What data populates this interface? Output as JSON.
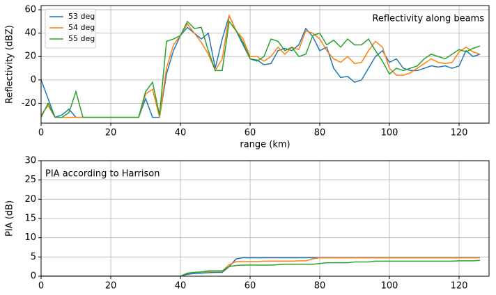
{
  "chart_data": [
    {
      "type": "line",
      "annotation": "Reflectivity along beams",
      "annotation_loc": "upper right",
      "xlabel": "range (km)",
      "ylabel": "Reflectivity (dBZ)",
      "xlim": [
        0,
        128.6
      ],
      "xticks": [
        0,
        20,
        40,
        60,
        80,
        100,
        120
      ],
      "ylim": [
        -37,
        63.6
      ],
      "yticks": [
        -20,
        0,
        20,
        40,
        60
      ],
      "grid": true,
      "legend": "upper left",
      "x": [
        0,
        2,
        4,
        6,
        8,
        10,
        12,
        14,
        16,
        18,
        20,
        22,
        24,
        26,
        28,
        30,
        32,
        34,
        36,
        38,
        40,
        42,
        44,
        46,
        48,
        50,
        52,
        54,
        56,
        58,
        60,
        62,
        64,
        66,
        68,
        70,
        72,
        74,
        76,
        78,
        80,
        82,
        84,
        86,
        88,
        90,
        92,
        94,
        96,
        98,
        100,
        102,
        104,
        106,
        108,
        110,
        112,
        114,
        116,
        118,
        120,
        122,
        124,
        126
      ],
      "series": [
        {
          "name": "53 deg",
          "color": "#1f77b4",
          "values": [
            0,
            -16,
            -32,
            -30,
            -25,
            -32,
            -32,
            -32,
            -32,
            -32,
            -32,
            -32,
            -32,
            -32,
            -32,
            -16,
            -32,
            -32,
            5,
            25,
            38,
            45,
            40,
            35,
            40,
            10,
            35,
            55,
            42,
            30,
            18,
            17,
            13,
            14,
            25,
            27,
            25,
            30,
            44,
            37,
            25,
            28,
            10,
            2,
            3,
            -2,
            0,
            10,
            20,
            25,
            15,
            18,
            10,
            8,
            8,
            10,
            12,
            11,
            12,
            10,
            12,
            25,
            20,
            22
          ]
        },
        {
          "name": "54 deg",
          "color": "#ff7f0e",
          "values": [
            -30,
            -22,
            -32,
            -32,
            -32,
            -32,
            -32,
            -32,
            -32,
            -32,
            -32,
            -32,
            -32,
            -32,
            -32,
            -12,
            -8,
            -32,
            10,
            30,
            38,
            48,
            40,
            32,
            22,
            8,
            18,
            55,
            42,
            35,
            20,
            20,
            16,
            20,
            28,
            22,
            28,
            26,
            42,
            40,
            35,
            25,
            18,
            15,
            20,
            14,
            15,
            25,
            33,
            28,
            10,
            4,
            4,
            6,
            10,
            14,
            18,
            15,
            14,
            15,
            24,
            28,
            24,
            22
          ]
        },
        {
          "name": "55 deg",
          "color": "#2ca02c",
          "values": [
            -32,
            -20,
            -32,
            -32,
            -28,
            -10,
            -32,
            -32,
            -32,
            -32,
            -32,
            -32,
            -32,
            -32,
            -32,
            -10,
            -2,
            -30,
            33,
            35,
            38,
            50,
            44,
            45,
            25,
            8,
            8,
            50,
            42,
            32,
            18,
            16,
            20,
            35,
            33,
            25,
            28,
            20,
            22,
            38,
            40,
            30,
            34,
            28,
            35,
            30,
            30,
            35,
            25,
            16,
            5,
            10,
            8,
            10,
            12,
            18,
            22,
            20,
            18,
            22,
            26,
            24,
            27,
            29
          ]
        }
      ]
    },
    {
      "type": "line",
      "annotation": "PIA according to Harrison",
      "annotation_loc": "upper left",
      "ylabel": "PIA (dB)",
      "xlim": [
        0,
        128.6
      ],
      "xticks": [
        0,
        20,
        40,
        60,
        80,
        100,
        120
      ],
      "ylim": [
        0,
        30
      ],
      "yticks": [
        0,
        5,
        10,
        15,
        20,
        25,
        30
      ],
      "grid": true,
      "x": [
        0,
        2,
        4,
        6,
        8,
        10,
        12,
        14,
        16,
        18,
        20,
        22,
        24,
        26,
        28,
        30,
        32,
        34,
        36,
        38,
        40,
        42,
        44,
        46,
        48,
        50,
        52,
        54,
        56,
        58,
        60,
        62,
        64,
        66,
        68,
        70,
        72,
        74,
        76,
        78,
        80,
        82,
        84,
        86,
        88,
        90,
        92,
        94,
        96,
        98,
        100,
        102,
        104,
        106,
        108,
        110,
        112,
        114,
        116,
        118,
        120,
        122,
        124,
        126
      ],
      "series": [
        {
          "color": "#1f77b4",
          "values": [
            0,
            0,
            0,
            0,
            0,
            0,
            0,
            0,
            0,
            0,
            0,
            0,
            0,
            0,
            0,
            0,
            0,
            0,
            0,
            0,
            0,
            0.5,
            0.7,
            0.8,
            0.9,
            1.0,
            1.0,
            2.5,
            4.5,
            4.8,
            4.8,
            4.8,
            4.8,
            4.8,
            4.8,
            4.8,
            4.8,
            4.8,
            4.8,
            4.8,
            4.8,
            4.8,
            4.8,
            4.8,
            4.8,
            4.8,
            4.8,
            4.8,
            4.8,
            4.8,
            4.8,
            4.8,
            4.8,
            4.8,
            4.8,
            4.8,
            4.8,
            4.8,
            4.8,
            4.8,
            4.8,
            4.8,
            4.8,
            4.8
          ]
        },
        {
          "color": "#ff7f0e",
          "values": [
            0,
            0,
            0,
            0,
            0,
            0,
            0,
            0,
            0,
            0,
            0,
            0,
            0,
            0,
            0,
            0,
            0,
            0,
            0,
            0,
            0,
            0.8,
            1.0,
            1.1,
            1.2,
            1.3,
            1.3,
            3.0,
            3.8,
            3.8,
            3.8,
            3.8,
            3.9,
            3.9,
            3.9,
            3.9,
            3.9,
            4.0,
            4.0,
            4.5,
            4.8,
            4.8,
            4.8,
            4.8,
            4.8,
            4.8,
            4.8,
            4.8,
            4.8,
            4.8,
            4.8,
            4.8,
            4.8,
            4.8,
            4.8,
            4.8,
            4.8,
            4.8,
            4.8,
            4.8,
            4.8,
            4.8,
            4.8,
            4.8
          ]
        },
        {
          "color": "#2ca02c",
          "values": [
            0,
            0,
            0,
            0,
            0,
            0,
            0,
            0,
            0,
            0,
            0,
            0,
            0,
            0,
            0,
            0,
            0,
            0,
            0,
            0,
            0,
            0.8,
            1.0,
            1.1,
            1.4,
            1.4,
            1.4,
            2.5,
            2.8,
            2.9,
            2.9,
            2.9,
            2.9,
            2.9,
            3.0,
            3.1,
            3.1,
            3.1,
            3.1,
            3.1,
            3.3,
            3.5,
            3.5,
            3.5,
            3.5,
            3.7,
            3.7,
            3.7,
            3.9,
            3.9,
            3.9,
            3.9,
            3.9,
            3.9,
            3.9,
            3.9,
            3.9,
            3.9,
            3.9,
            3.9,
            4.0,
            4.0,
            4.0,
            4.1
          ]
        }
      ]
    }
  ]
}
